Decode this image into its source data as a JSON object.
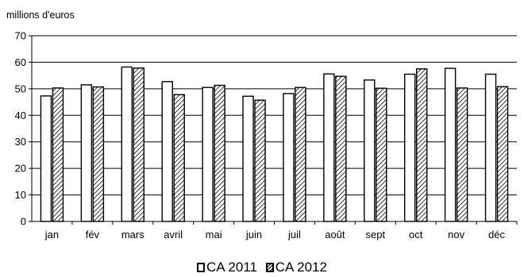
{
  "unit_label": "millions d'euros",
  "chart_data": {
    "type": "bar",
    "categories": [
      "jan",
      "fév",
      "mars",
      "avril",
      "mai",
      "juin",
      "juil",
      "août",
      "sept",
      "oct",
      "nov",
      "déc"
    ],
    "series": [
      {
        "name": "CA 2011",
        "values": [
          47.3,
          51.5,
          58.2,
          52.7,
          50.5,
          47.2,
          48.2,
          55.6,
          53.3,
          55.5,
          57.7,
          55.5
        ],
        "fill": "#ffffff",
        "pattern": "none"
      },
      {
        "name": "CA 2012",
        "values": [
          50.3,
          50.7,
          57.8,
          47.8,
          51.3,
          45.7,
          50.5,
          54.7,
          50.2,
          57.5,
          50.3,
          50.8
        ],
        "fill": "#ffffff",
        "pattern": "diagonal-hatch"
      }
    ],
    "yticks": [
      0,
      10,
      20,
      30,
      40,
      50,
      60,
      70
    ],
    "ylim": [
      0,
      70
    ],
    "ylabel": "millions d'euros",
    "xlabel": "",
    "title": "",
    "grid": true,
    "legend_position": "bottom"
  }
}
